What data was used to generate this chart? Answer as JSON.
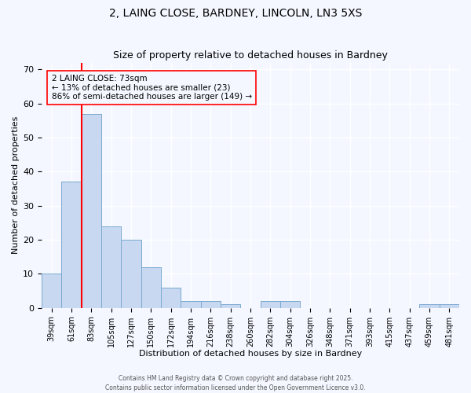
{
  "title": "2, LAING CLOSE, BARDNEY, LINCOLN, LN3 5XS",
  "subtitle": "Size of property relative to detached houses in Bardney",
  "xlabel": "Distribution of detached houses by size in Bardney",
  "ylabel": "Number of detached properties",
  "bar_color": "#c8d8f0",
  "bar_edge_color": "#7aaad0",
  "background_color": "#f4f7ff",
  "grid_color": "#ffffff",
  "categories": [
    "39sqm",
    "61sqm",
    "83sqm",
    "105sqm",
    "127sqm",
    "150sqm",
    "172sqm",
    "194sqm",
    "216sqm",
    "238sqm",
    "260sqm",
    "282sqm",
    "304sqm",
    "326sqm",
    "348sqm",
    "371sqm",
    "393sqm",
    "415sqm",
    "437sqm",
    "459sqm",
    "481sqm"
  ],
  "values": [
    10,
    37,
    57,
    24,
    20,
    12,
    6,
    2,
    2,
    1,
    0,
    2,
    2,
    0,
    0,
    0,
    0,
    0,
    0,
    1,
    1
  ],
  "ylim": [
    0,
    72
  ],
  "yticks": [
    0,
    10,
    20,
    30,
    40,
    50,
    60,
    70
  ],
  "red_line_x": 1.5,
  "annotation_text": "2 LAING CLOSE: 73sqm\n← 13% of detached houses are smaller (23)\n86% of semi-detached houses are larger (149) →",
  "footer_line1": "Contains HM Land Registry data © Crown copyright and database right 2025.",
  "footer_line2": "Contains public sector information licensed under the Open Government Licence v3.0."
}
